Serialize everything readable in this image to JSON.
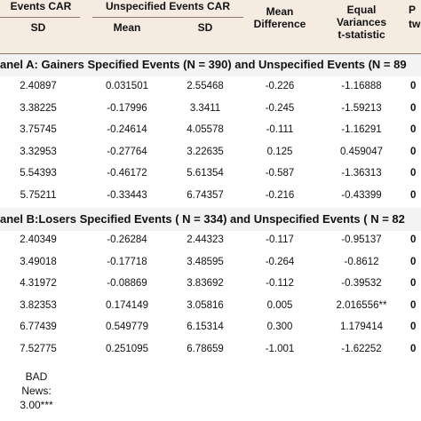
{
  "headers": {
    "group1_title": "Events CAR",
    "group2_title": "Unspecified Events CAR",
    "col_sd1": "SD",
    "col_mean2": "Mean",
    "col_sd2": "SD",
    "col_mean_diff_l1": "Mean",
    "col_mean_diff_l2": "Difference",
    "col_eqvar_l1": "Equal",
    "col_eqvar_l2": "Variances",
    "col_eqvar_l3": "t-statistic",
    "col_last_l1": "P",
    "col_last_l2": "tw"
  },
  "panel_a": {
    "title": "anel A: Gainers Specified Events (N = 390) and Unspecified Events (N = 89",
    "rows": [
      {
        "sd1": "2.40897",
        "mean2": "0.031501",
        "sd2": "2.55468",
        "diff": "-0.226",
        "t": "-1.16888",
        "last": "0"
      },
      {
        "sd1": "3.38225",
        "mean2": "-0.17996",
        "sd2": "3.3411",
        "diff": "-0.245",
        "t": "-1.59213",
        "last": "0"
      },
      {
        "sd1": "3.75745",
        "mean2": "-0.24614",
        "sd2": "4.05578",
        "diff": "-0.111",
        "t": "-1.16291",
        "last": "0"
      },
      {
        "sd1": "3.32953",
        "mean2": "-0.27764",
        "sd2": "3.22635",
        "diff": "0.125",
        "t": "0.459047",
        "last": "0"
      },
      {
        "sd1": "5.54393",
        "mean2": "-0.46172",
        "sd2": "5.61354",
        "diff": "-0.587",
        "t": "-1.36313",
        "last": "0"
      },
      {
        "sd1": "5.75211",
        "mean2": "-0.33443",
        "sd2": "6.74357",
        "diff": "-0.216",
        "t": "-0.43399",
        "last": "0"
      }
    ]
  },
  "panel_b": {
    "title": "anel B:Losers Specified Events ( N = 334) and Unspecified Events ( N = 82",
    "rows": [
      {
        "sd1": "2.40349",
        "mean2": "-0.26284",
        "sd2": "2.44323",
        "diff": "-0.117",
        "t": "-0.95137",
        "last": "0"
      },
      {
        "sd1": "3.49018",
        "mean2": "-0.17718",
        "sd2": "3.48595",
        "diff": "-0.264",
        "t": "-0.8612",
        "last": "0"
      },
      {
        "sd1": "4.31972",
        "mean2": "-0.08869",
        "sd2": "3.83692",
        "diff": "-0.112",
        "t": "-0.39532",
        "last": "0"
      },
      {
        "sd1": "3.82353",
        "mean2": "0.174149",
        "sd2": "3.05816",
        "diff": "0.005",
        "t": "2.016556**",
        "last": "0"
      },
      {
        "sd1": "6.77439",
        "mean2": "0.549779",
        "sd2": "6.15314",
        "diff": "0.300",
        "t": "1.179414",
        "last": "0"
      },
      {
        "sd1": "7.52775",
        "mean2": "0.251095",
        "sd2": "6.78659",
        "diff": "-1.001",
        "t": "-1.62252",
        "last": "0"
      }
    ]
  },
  "footer": {
    "line1": "BAD",
    "line2": "News:",
    "line3": "3.00***"
  },
  "colors": {
    "header_band": "#f6ebe1",
    "panel_band": "#f3f3f3",
    "rule": "#8a7a6a"
  }
}
